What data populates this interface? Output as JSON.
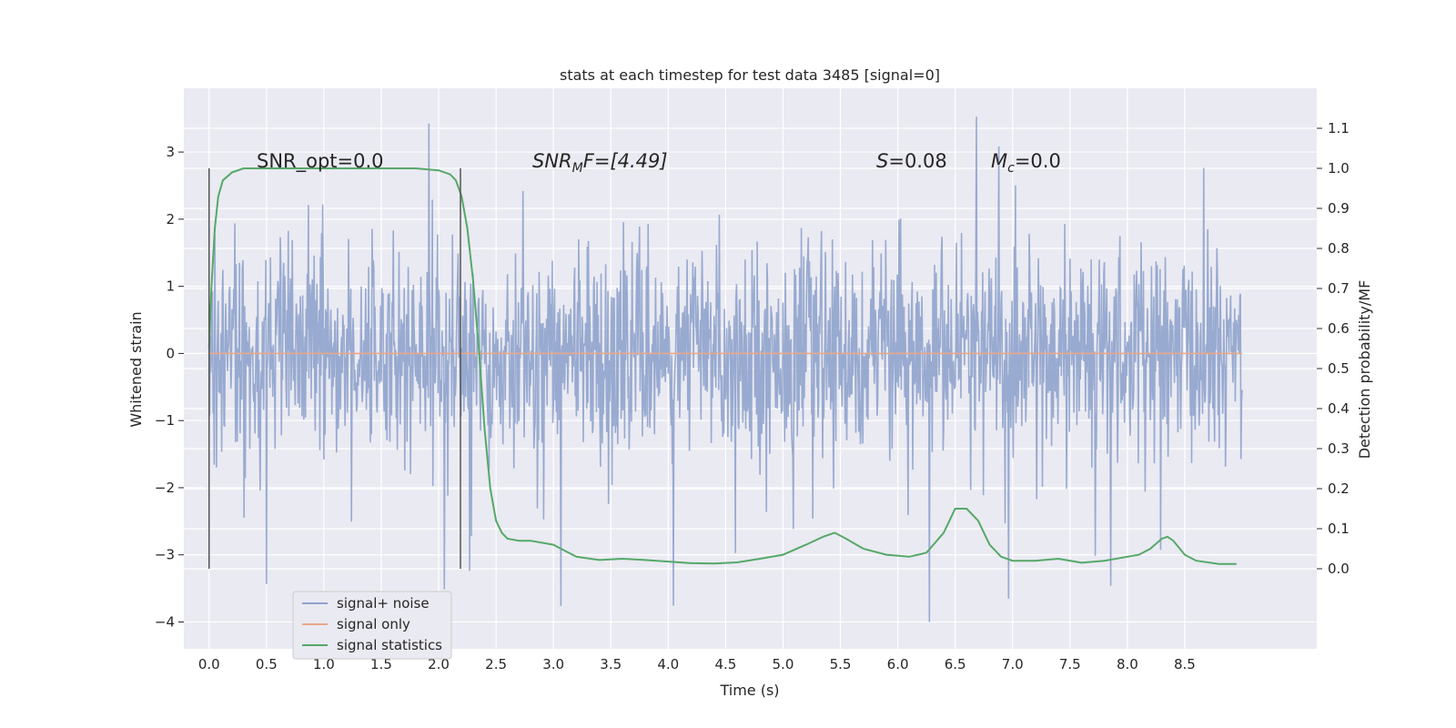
{
  "chart_data": {
    "type": "line",
    "title": "stats at each timestep for test data 3485 [signal=0]",
    "xlabel": "Time (s)",
    "ylabel": "Whitened strain",
    "ylabel_right": "Detection probability/MF",
    "xlim": [
      -0.22,
      9.65
    ],
    "ylim": [
      -4.4,
      3.95
    ],
    "ylim_right": [
      -0.2,
      1.2
    ],
    "x_ticks": [
      "0.0",
      "0.5",
      "1.0",
      "1.5",
      "2.0",
      "2.5",
      "3.0",
      "3.5",
      "4.0",
      "4.5",
      "5.0",
      "5.5",
      "6.0",
      "6.5",
      "7.0",
      "7.5",
      "8.0",
      "8.5"
    ],
    "y_ticks": [
      "3",
      "2",
      "1",
      "0",
      "−1",
      "−2",
      "−3",
      "−4"
    ],
    "y_ticks_right": [
      "1.1",
      "1.0",
      "0.9",
      "0.8",
      "0.7",
      "0.6",
      "0.5",
      "0.4",
      "0.3",
      "0.2",
      "0.1",
      "0.0"
    ],
    "grid": true,
    "annotations": {
      "snr_opt": "SNR_opt=0.0",
      "snr_mf_label": "SNR",
      "snr_mf_sub": "M",
      "snr_mf_tail": "F=[4.49]",
      "s_label": "S",
      "s_value": "=0.08",
      "mc_label": "M",
      "mc_sub": "c",
      "mc_value": "=0.0"
    },
    "vertical_markers": [
      0.0,
      2.19
    ],
    "noise_envelope": {
      "t": [
        0.0,
        9.0
      ],
      "typical_range": [
        -1.6,
        1.6
      ],
      "extreme_range": [
        -4.0,
        3.6
      ]
    },
    "series": [
      {
        "name": "signal+ noise",
        "color": "#8fa3cc",
        "kind": "noise"
      },
      {
        "name": "signal only",
        "color": "#e8a88a",
        "x": [
          0.0,
          9.0
        ],
        "values": [
          0.0,
          0.0
        ]
      },
      {
        "name": "signal statistics",
        "color": "#55a868",
        "axis": "right",
        "x": [
          0.0,
          0.02,
          0.05,
          0.08,
          0.12,
          0.2,
          0.3,
          0.5,
          1.0,
          1.5,
          1.8,
          2.0,
          2.1,
          2.15,
          2.2,
          2.25,
          2.3,
          2.35,
          2.4,
          2.45,
          2.5,
          2.55,
          2.6,
          2.7,
          2.8,
          3.0,
          3.1,
          3.2,
          3.4,
          3.6,
          3.8,
          4.0,
          4.2,
          4.4,
          4.6,
          4.8,
          5.0,
          5.2,
          5.35,
          5.45,
          5.55,
          5.7,
          5.9,
          6.1,
          6.25,
          6.4,
          6.5,
          6.6,
          6.7,
          6.8,
          6.9,
          7.0,
          7.2,
          7.4,
          7.6,
          7.8,
          8.0,
          8.1,
          8.2,
          8.3,
          8.35,
          8.4,
          8.5,
          8.6,
          8.8,
          8.95
        ],
        "values": [
          0.55,
          0.7,
          0.85,
          0.93,
          0.97,
          0.99,
          1.0,
          1.0,
          1.0,
          1.0,
          1.0,
          0.995,
          0.985,
          0.97,
          0.93,
          0.85,
          0.72,
          0.55,
          0.35,
          0.2,
          0.12,
          0.09,
          0.075,
          0.07,
          0.07,
          0.06,
          0.045,
          0.03,
          0.022,
          0.025,
          0.022,
          0.018,
          0.014,
          0.013,
          0.016,
          0.025,
          0.035,
          0.06,
          0.08,
          0.09,
          0.075,
          0.05,
          0.035,
          0.03,
          0.04,
          0.09,
          0.15,
          0.15,
          0.12,
          0.06,
          0.03,
          0.02,
          0.02,
          0.025,
          0.015,
          0.02,
          0.03,
          0.035,
          0.05,
          0.075,
          0.08,
          0.07,
          0.035,
          0.02,
          0.012,
          0.012
        ]
      }
    ]
  }
}
